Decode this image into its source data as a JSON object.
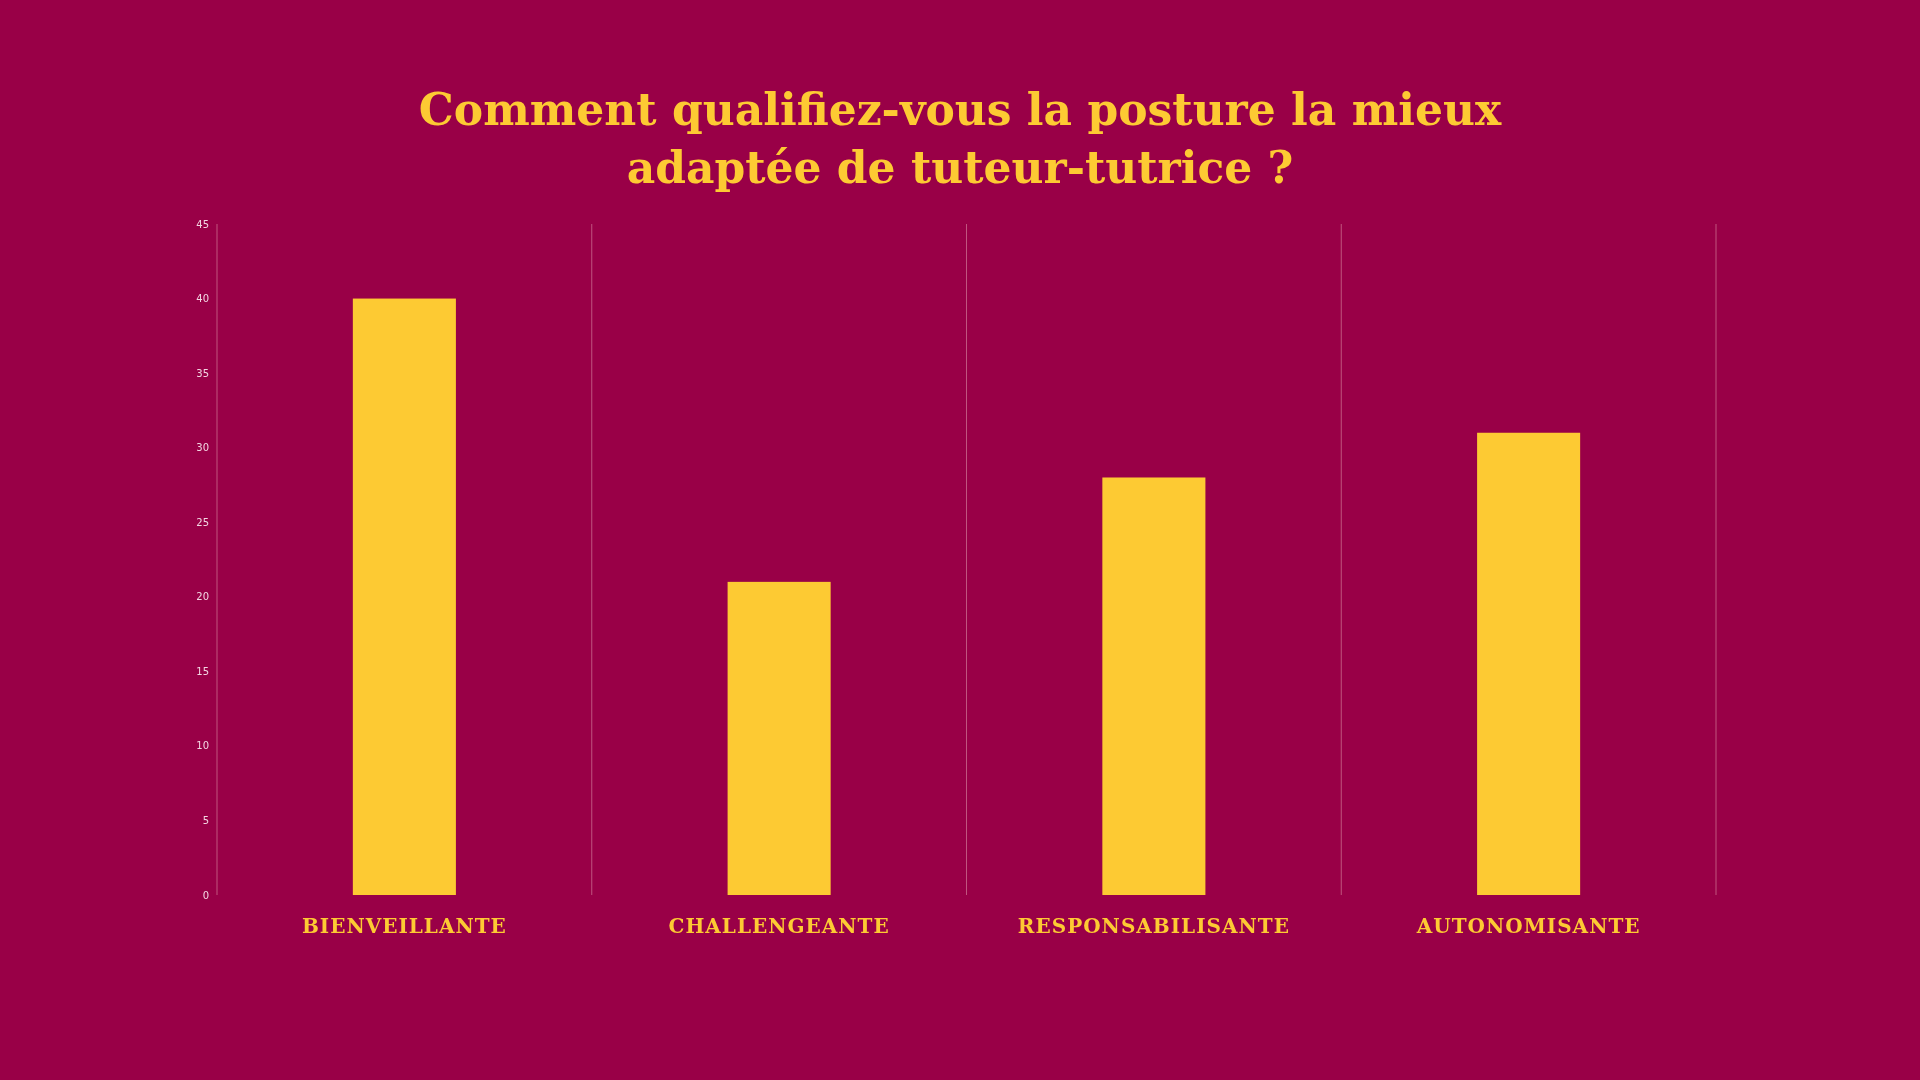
{
  "chart_data": {
    "type": "bar",
    "title": "Comment qualifiez-vous la posture la mieux adaptée de tuteur-tutrice ?",
    "categories": [
      "BIENVEILLANTE",
      "CHALLENGEANTE",
      "RESPONSABILISANTE",
      "AUTONOMISANTE"
    ],
    "values": [
      40,
      21,
      28,
      31
    ],
    "color": "#fdca33",
    "ylim": [
      0,
      45
    ],
    "yticks": [
      0,
      5,
      10,
      15,
      20,
      25,
      30,
      35,
      40,
      45
    ],
    "grid": "x"
  }
}
